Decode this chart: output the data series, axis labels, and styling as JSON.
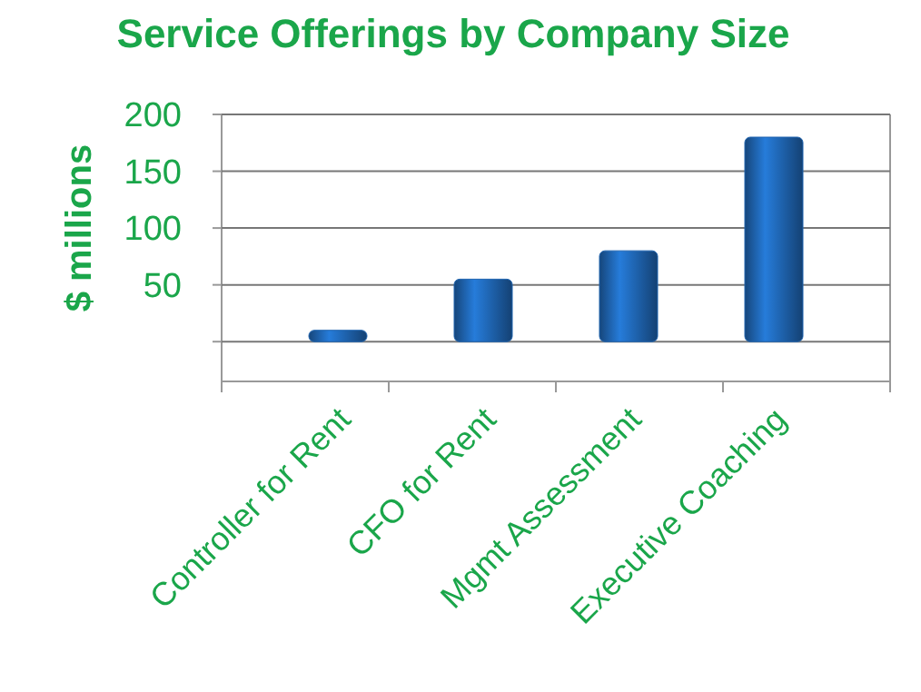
{
  "chart_data": {
    "type": "bar",
    "title": "Service Offerings by Company Size",
    "ylabel": "$ millions",
    "categories": [
      "Controller for Rent",
      "CFO for Rent",
      "Mgmt Assessment",
      "Executive Coaching"
    ],
    "values": [
      10,
      55,
      80,
      180
    ],
    "color": "#1f64b0",
    "ylim": [
      -35,
      200
    ],
    "yticks": [
      {
        "value": 0,
        "label": null
      },
      50,
      100,
      150,
      200
    ],
    "grid": "y"
  }
}
